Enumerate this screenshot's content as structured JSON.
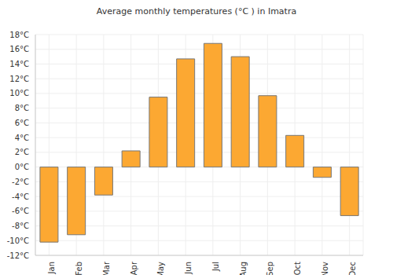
{
  "chart_data": {
    "type": "bar",
    "title": "Average monthly temperatures (°C ) in Imatra",
    "categories": [
      "Jan",
      "Feb",
      "Mar",
      "Apr",
      "May",
      "Jun",
      "Jul",
      "Aug",
      "Sep",
      "Oct",
      "Nov",
      "Dec"
    ],
    "values": [
      -10.2,
      -9.2,
      -3.8,
      2.2,
      9.5,
      14.7,
      16.8,
      15.0,
      9.7,
      4.3,
      -1.4,
      -6.6
    ],
    "color": "#fca832",
    "ylim": [
      -12,
      18
    ],
    "yticks": [
      {
        "value": -12,
        "label": "-12°C"
      },
      {
        "value": -10,
        "label": "-10°C"
      },
      {
        "value": -8,
        "label": "-8°C"
      },
      {
        "value": -6,
        "label": "-6°C"
      },
      {
        "value": -4,
        "label": "-4°C"
      },
      {
        "value": -2,
        "label": "-2°C"
      },
      {
        "value": 0,
        "label": "0°C"
      },
      {
        "value": 2,
        "label": "2°C"
      },
      {
        "value": 4,
        "label": "4°C"
      },
      {
        "value": 6,
        "label": "6°C"
      },
      {
        "value": 8,
        "label": "8°C"
      },
      {
        "value": 10,
        "label": "10°C"
      },
      {
        "value": 12,
        "label": "12°C"
      },
      {
        "value": 14,
        "label": "14°C"
      },
      {
        "value": 16,
        "label": "16°C"
      },
      {
        "value": 18,
        "label": "18°C"
      }
    ],
    "grid": true
  }
}
